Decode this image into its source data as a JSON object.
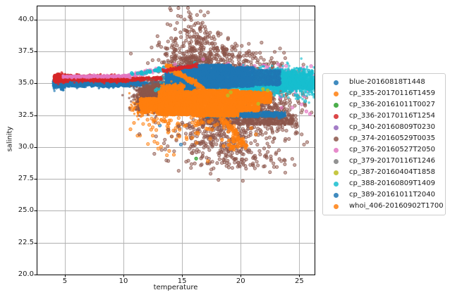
{
  "figure": {
    "background": "#ffffff",
    "grid_color": "#b0b0b0",
    "spine_color": "#000000"
  },
  "chart_data": {
    "type": "scatter",
    "title": "",
    "xlabel": "temperature",
    "ylabel": "salinity",
    "xlim": [
      2.6,
      26.3
    ],
    "ylim": [
      20.0,
      41.1
    ],
    "xticks": [
      5,
      10,
      15,
      20,
      25
    ],
    "yticks": [
      20.0,
      22.5,
      25.0,
      27.5,
      30.0,
      32.5,
      35.0,
      37.5,
      40.0
    ],
    "xtick_labels": [
      "5",
      "10",
      "15",
      "20",
      "25"
    ],
    "ytick_labels": [
      "20.0",
      "22.5",
      "25.0",
      "27.5",
      "30.0",
      "32.5",
      "35.0",
      "37.5",
      "40.0"
    ],
    "grid": true,
    "legend_position": "outside-right",
    "series": [
      {
        "name": "blue-20160818T1448",
        "color": "#1f77b4",
        "description": "dense thin horizontal band near salinity 35 from temp 4 to ~14",
        "clusters": [
          {
            "kind": "band",
            "x0": 4.0,
            "x1": 5.0,
            "y0": 34.98,
            "y1": 34.98,
            "sy": 0.2,
            "n": 450,
            "r": 1.7,
            "a": 0.7
          },
          {
            "kind": "band",
            "x0": 4.6,
            "x1": 11.5,
            "y0": 34.97,
            "y1": 35.05,
            "sy": 0.11,
            "n": 2000,
            "r": 1.7,
            "a": 0.7
          },
          {
            "kind": "band",
            "x0": 8.0,
            "x1": 11.8,
            "y0": 34.85,
            "y1": 34.92,
            "sy": 0.07,
            "n": 500,
            "r": 1.6,
            "a": 0.6
          },
          {
            "kind": "band",
            "x0": 11.5,
            "x1": 14.2,
            "y0": 35.0,
            "y1": 35.05,
            "sy": 0.07,
            "n": 140,
            "r": 1.7,
            "a": 0.5
          }
        ]
      },
      {
        "name": "cp_335-20170116T1459",
        "color": "#ff7f0e",
        "description": "orange blob near (12,33.3) with scattered dots trailing below",
        "clusters": [
          {
            "kind": "blob",
            "cx": 11.9,
            "cy": 33.3,
            "sx": 0.5,
            "sy": 0.35,
            "n": 450,
            "r": 1.7,
            "a": 0.7
          },
          {
            "kind": "uband",
            "x0": 11.2,
            "x1": 13.4,
            "yc": 33.2,
            "h": 0.55,
            "n": 450,
            "r": 1.7,
            "a": 0.7
          },
          {
            "kind": "blob",
            "cx": 13.3,
            "cy": 31.7,
            "sx": 1.1,
            "sy": 0.8,
            "n": 40,
            "r": 2.2,
            "a": 0.5,
            "ring": true
          },
          {
            "kind": "points",
            "pts": [
              [
                12.05,
                32.15
              ],
              [
                12.2,
                31.75
              ],
              [
                11.6,
                32.5
              ],
              [
                12.5,
                30.9
              ],
              [
                10.9,
                31.9
              ],
              [
                10.6,
                31.4
              ],
              [
                11.2,
                30.9
              ]
            ],
            "r": 2.2,
            "a": 0.55,
            "ring": true
          }
        ]
      },
      {
        "name": "cp_336-20161011T0027",
        "color": "#2ca02c",
        "description": "only a couple of green points visible",
        "clusters": [
          {
            "kind": "points",
            "pts": [
              [
                16.2,
                29.1
              ],
              [
                15.9,
                33.0
              ]
            ],
            "r": 2.2,
            "a": 0.7,
            "ring": true
          }
        ]
      },
      {
        "name": "cp_336-20170116T1254",
        "color": "#d62728",
        "description": "red band near salinity 35.4 temp 4-13 plus arc on top of blue mass",
        "clusters": [
          {
            "kind": "band",
            "x0": 4.05,
            "x1": 5.3,
            "y0": 35.42,
            "y1": 35.42,
            "sy": 0.15,
            "n": 500,
            "r": 1.7,
            "a": 0.75
          },
          {
            "kind": "band",
            "x0": 5.0,
            "x1": 10.3,
            "y0": 35.45,
            "y1": 35.3,
            "sy": 0.11,
            "n": 1300,
            "r": 1.7,
            "a": 0.75
          },
          {
            "kind": "band",
            "x0": 10.3,
            "x1": 13.4,
            "y0": 35.3,
            "y1": 35.4,
            "sy": 0.07,
            "n": 350,
            "r": 1.6,
            "a": 0.7
          },
          {
            "kind": "streak",
            "x0": 13.4,
            "y0": 35.95,
            "x1": 16.3,
            "y1": 36.45,
            "w": 0.07,
            "n": 140,
            "r": 1.6,
            "a": 0.8,
            "zTop": true
          }
        ]
      },
      {
        "name": "cp_340-20160809T0230",
        "color": "#9467bd",
        "description": "not visibly distinct (hidden under dense masses)",
        "clusters": []
      },
      {
        "name": "cp_374-20160529T0035",
        "color": "#8c564b",
        "description": "dense brown wedge near (13,34) plus wide sparse cloud salinity 28-41",
        "clusters": [
          {
            "kind": "blob",
            "cx": 13.2,
            "cy": 33.9,
            "sx": 1.0,
            "sy": 0.45,
            "n": 1500,
            "r": 1.7,
            "a": 0.7
          },
          {
            "kind": "uband",
            "x0": 11.4,
            "x1": 16.3,
            "yc": 33.9,
            "h": 0.75,
            "n": 1300,
            "r": 1.7,
            "a": 0.7
          },
          {
            "kind": "band",
            "x0": 11.6,
            "x1": 16.5,
            "y0": 34.6,
            "y1": 34.3,
            "sy": 0.25,
            "n": 500,
            "r": 1.7,
            "a": 0.6
          },
          {
            "kind": "blob",
            "cx": 16.3,
            "cy": 37.1,
            "sx": 1.5,
            "sy": 1.0,
            "n": 380,
            "r": 2.2,
            "a": 0.5,
            "ring": true
          },
          {
            "kind": "blob",
            "cx": 20.3,
            "cy": 36.5,
            "sx": 2.0,
            "sy": 0.75,
            "n": 160,
            "r": 2.2,
            "a": 0.5,
            "ring": true
          },
          {
            "kind": "blob",
            "cx": 16.0,
            "cy": 39.6,
            "sx": 1.2,
            "sy": 0.7,
            "n": 45,
            "r": 2.2,
            "a": 0.5,
            "ring": true
          },
          {
            "kind": "blob",
            "cx": 15.0,
            "cy": 35.9,
            "sx": 0.8,
            "sy": 0.5,
            "n": 120,
            "r": 2.2,
            "a": 0.5,
            "ring": true
          },
          {
            "kind": "blob",
            "cx": 22.3,
            "cy": 33.2,
            "sx": 1.7,
            "sy": 1.1,
            "n": 330,
            "r": 2.2,
            "a": 0.5,
            "ring": true
          },
          {
            "kind": "blob",
            "cx": 18.3,
            "cy": 30.9,
            "sx": 2.2,
            "sy": 1.2,
            "n": 380,
            "r": 2.2,
            "a": 0.5,
            "ring": true
          },
          {
            "kind": "uband",
            "x0": 16.5,
            "x1": 24.5,
            "yc": 32.15,
            "h": 0.4,
            "n": 800,
            "r": 1.8,
            "a": 0.65
          },
          {
            "kind": "blob",
            "cx": 20.5,
            "cy": 28.9,
            "sx": 2.0,
            "sy": 0.5,
            "n": 50,
            "r": 2.2,
            "a": 0.5,
            "ring": true
          },
          {
            "kind": "points",
            "pts": [
              [
                23.8,
                28.0
              ],
              [
                24.6,
                28.6
              ],
              [
                25.2,
                31.0
              ],
              [
                25.4,
                30.2
              ]
            ],
            "r": 2.2,
            "a": 0.5,
            "ring": true
          }
        ]
      },
      {
        "name": "cp_376-20160527T2050",
        "color": "#e377c2",
        "description": "thin pink line on top of red band, sparse pink dots on right side",
        "clusters": [
          {
            "kind": "band",
            "x0": 4.8,
            "x1": 10.4,
            "y0": 35.52,
            "y1": 35.57,
            "sy": 0.05,
            "n": 350,
            "r": 1.7,
            "a": 0.65
          },
          {
            "kind": "streak",
            "x0": 10.4,
            "y0": 35.6,
            "x1": 13.8,
            "y1": 36.25,
            "w": 0.09,
            "n": 160,
            "r": 1.9,
            "a": 0.6
          },
          {
            "kind": "blob",
            "cx": 23.0,
            "cy": 35.75,
            "sx": 1.7,
            "sy": 0.35,
            "n": 55,
            "r": 2.2,
            "a": 0.6,
            "ring": true
          },
          {
            "kind": "blob",
            "cx": 24.6,
            "cy": 34.4,
            "sx": 1.1,
            "sy": 0.7,
            "n": 30,
            "r": 2.2,
            "a": 0.6,
            "ring": true
          },
          {
            "kind": "blob",
            "cx": 21.0,
            "cy": 36.1,
            "sx": 1.2,
            "sy": 0.3,
            "n": 25,
            "r": 2.2,
            "a": 0.6,
            "ring": true
          },
          {
            "kind": "points",
            "pts": [
              [
                24.4,
                33.1
              ],
              [
                25.6,
                32.8
              ],
              [
                25.9,
                32.6
              ],
              [
                16.8,
                36.9
              ],
              [
                14.4,
                36.5
              ]
            ],
            "r": 2.2,
            "a": 0.65,
            "ring": true
          }
        ]
      },
      {
        "name": "cp_379-20170116T1246",
        "color": "#7f7f7f",
        "description": "not visibly distinct (hidden under dense masses)",
        "clusters": []
      },
      {
        "name": "cp_387-20160404T1858",
        "color": "#bcbd22",
        "description": "a few olive dots near temp 19-22.5, salinity 33.4-34.6",
        "clusters": [
          {
            "kind": "points",
            "pts": [
              [
                19.15,
                34.3
              ],
              [
                21.5,
                33.4
              ],
              [
                22.3,
                34.45
              ],
              [
                18.9,
                34.05
              ],
              [
                21.9,
                34.55
              ]
            ],
            "r": 2.2,
            "a": 0.8,
            "zTop": true,
            "ring": true
          }
        ]
      },
      {
        "name": "cp_388-20160809T1409",
        "color": "#17becf",
        "description": "dense cyan mass temp 18-26 around salinity 35, plus dotted row near (11-15, 34.5-36.2)",
        "clusters": [
          {
            "kind": "blob",
            "cx": 22.4,
            "cy": 35.15,
            "sx": 1.6,
            "sy": 0.42,
            "n": 2000,
            "r": 1.7,
            "a": 0.7
          },
          {
            "kind": "uband",
            "x0": 17.2,
            "x1": 26.3,
            "yc": 34.85,
            "h": 0.3,
            "n": 900,
            "r": 1.7,
            "a": 0.7
          },
          {
            "kind": "band",
            "x0": 19.5,
            "x1": 26.2,
            "y0": 35.65,
            "y1": 35.75,
            "sy": 0.18,
            "n": 350,
            "r": 1.8,
            "a": 0.6
          },
          {
            "kind": "band",
            "x0": 23.5,
            "x1": 26.3,
            "y0": 35.2,
            "y1": 35.1,
            "sy": 0.5,
            "n": 500,
            "r": 1.8,
            "a": 0.65
          },
          {
            "kind": "streak",
            "x0": 10.6,
            "y0": 35.72,
            "x1": 13.6,
            "y1": 36.18,
            "w": 0.07,
            "n": 24,
            "r": 2.2,
            "a": 0.75,
            "ring": true
          },
          {
            "kind": "streak",
            "x0": 12.8,
            "y0": 34.5,
            "x1": 15.2,
            "y1": 34.95,
            "w": 0.07,
            "n": 16,
            "r": 2.2,
            "a": 0.7,
            "ring": true
          },
          {
            "kind": "blob",
            "cx": 14.3,
            "cy": 35.35,
            "sx": 0.5,
            "sy": 0.25,
            "n": 70,
            "r": 1.8,
            "a": 0.65
          },
          {
            "kind": "points",
            "pts": [
              [
                25.5,
                33.6
              ],
              [
                24.9,
                33.9
              ],
              [
                16.1,
                36.6
              ],
              [
                25.0,
                36.1
              ],
              [
                25.8,
                36.0
              ]
            ],
            "r": 2.2,
            "a": 0.7,
            "ring": true
          }
        ]
      },
      {
        "name": "cp_389-20161011T2040",
        "color": "#1f77b4",
        "description": "large dense blue mass temp 13.5-23.5 salinity 34.6-36.5 plus streak near salinity 32.5",
        "clusters": [
          {
            "kind": "uband",
            "x0": 13.6,
            "x1": 14.6,
            "yc": 35.35,
            "h": 0.5,
            "n": 350,
            "r": 1.7,
            "a": 0.75
          },
          {
            "kind": "uband",
            "x0": 14.6,
            "x1": 16.2,
            "yc": 35.5,
            "h": 0.85,
            "n": 900,
            "r": 1.7,
            "a": 0.75
          },
          {
            "kind": "uband",
            "x0": 16.2,
            "x1": 19.2,
            "yc": 35.55,
            "h": 0.92,
            "n": 1800,
            "r": 1.7,
            "a": 0.75
          },
          {
            "kind": "uband",
            "x0": 19.2,
            "x1": 21.2,
            "yc": 35.5,
            "h": 0.78,
            "n": 800,
            "r": 1.7,
            "a": 0.75
          },
          {
            "kind": "uband",
            "x0": 21.2,
            "x1": 23.4,
            "yc": 35.45,
            "h": 0.6,
            "n": 550,
            "r": 1.7,
            "a": 0.7
          },
          {
            "kind": "band",
            "x0": 13.6,
            "x1": 16.0,
            "y0": 34.8,
            "y1": 34.7,
            "sy": 0.2,
            "n": 300,
            "r": 1.7,
            "a": 0.7
          },
          {
            "kind": "uband",
            "x0": 17.0,
            "x1": 23.8,
            "yc": 32.55,
            "h": 0.22,
            "n": 550,
            "r": 1.7,
            "a": 0.7
          },
          {
            "kind": "points",
            "pts": [
              [
                13.1,
                31.7
              ],
              [
                23.3,
                32.3
              ],
              [
                14.9,
                30.2
              ]
            ],
            "r": 2.2,
            "a": 0.6,
            "ring": true
          }
        ]
      },
      {
        "name": "whoi_406-20160902T1700",
        "color": "#ff7f0e",
        "description": "big orange triangular mass temp 11.5-22.5 salinity 32.4-34.5, diagonal streak through blue mass, chain of dots trailing to (20,30)",
        "clusters": [
          {
            "kind": "uband",
            "x0": 11.4,
            "x1": 13.0,
            "yc": 33.35,
            "h": 0.5,
            "n": 600,
            "r": 1.7,
            "a": 0.75
          },
          {
            "kind": "uband",
            "x0": 13.0,
            "x1": 16.0,
            "yc": 33.45,
            "h": 0.95,
            "n": 2000,
            "r": 1.7,
            "a": 0.75
          },
          {
            "kind": "uband",
            "x0": 16.0,
            "x1": 19.8,
            "yc": 33.45,
            "h": 1.05,
            "n": 2600,
            "r": 1.7,
            "a": 0.75
          },
          {
            "kind": "uband",
            "x0": 19.8,
            "x1": 21.6,
            "yc": 33.6,
            "h": 0.8,
            "n": 800,
            "r": 1.7,
            "a": 0.75
          },
          {
            "kind": "uband",
            "x0": 21.6,
            "x1": 22.6,
            "yc": 33.9,
            "h": 0.45,
            "n": 250,
            "r": 1.7,
            "a": 0.7
          },
          {
            "kind": "band",
            "x0": 13.2,
            "x1": 15.2,
            "y0": 34.55,
            "y1": 34.75,
            "sy": 0.15,
            "n": 250,
            "r": 1.7,
            "a": 0.7
          },
          {
            "kind": "streak",
            "x0": 13.7,
            "y0": 36.35,
            "x1": 16.4,
            "y1": 34.85,
            "w": 0.1,
            "n": 200,
            "r": 1.8,
            "a": 0.8
          },
          {
            "kind": "streak",
            "x0": 16.4,
            "y0": 34.85,
            "x1": 18.4,
            "y1": 33.3,
            "w": 0.09,
            "n": 120,
            "r": 1.8,
            "a": 0.7
          },
          {
            "kind": "streak",
            "x0": 18.3,
            "y0": 32.3,
            "x1": 20.4,
            "y1": 30.1,
            "w": 0.16,
            "n": 70,
            "r": 2.0,
            "a": 0.6,
            "ring": true
          },
          {
            "kind": "blob",
            "cx": 19.7,
            "cy": 30.35,
            "sx": 0.45,
            "sy": 0.3,
            "n": 30,
            "r": 2.2,
            "a": 0.7,
            "ring": true
          },
          {
            "kind": "blob",
            "cx": 16.2,
            "cy": 31.8,
            "sx": 1.5,
            "sy": 0.7,
            "n": 55,
            "r": 2.2,
            "a": 0.55,
            "ring": true
          },
          {
            "kind": "points",
            "pts": [
              [
                13.9,
                29.7
              ],
              [
                14.3,
                29.4
              ],
              [
                17.2,
                28.9
              ],
              [
                20.9,
                31.5
              ],
              [
                21.3,
                31.0
              ],
              [
                12.9,
                30.3
              ]
            ],
            "r": 2.2,
            "a": 0.55,
            "ring": true
          }
        ]
      }
    ]
  }
}
